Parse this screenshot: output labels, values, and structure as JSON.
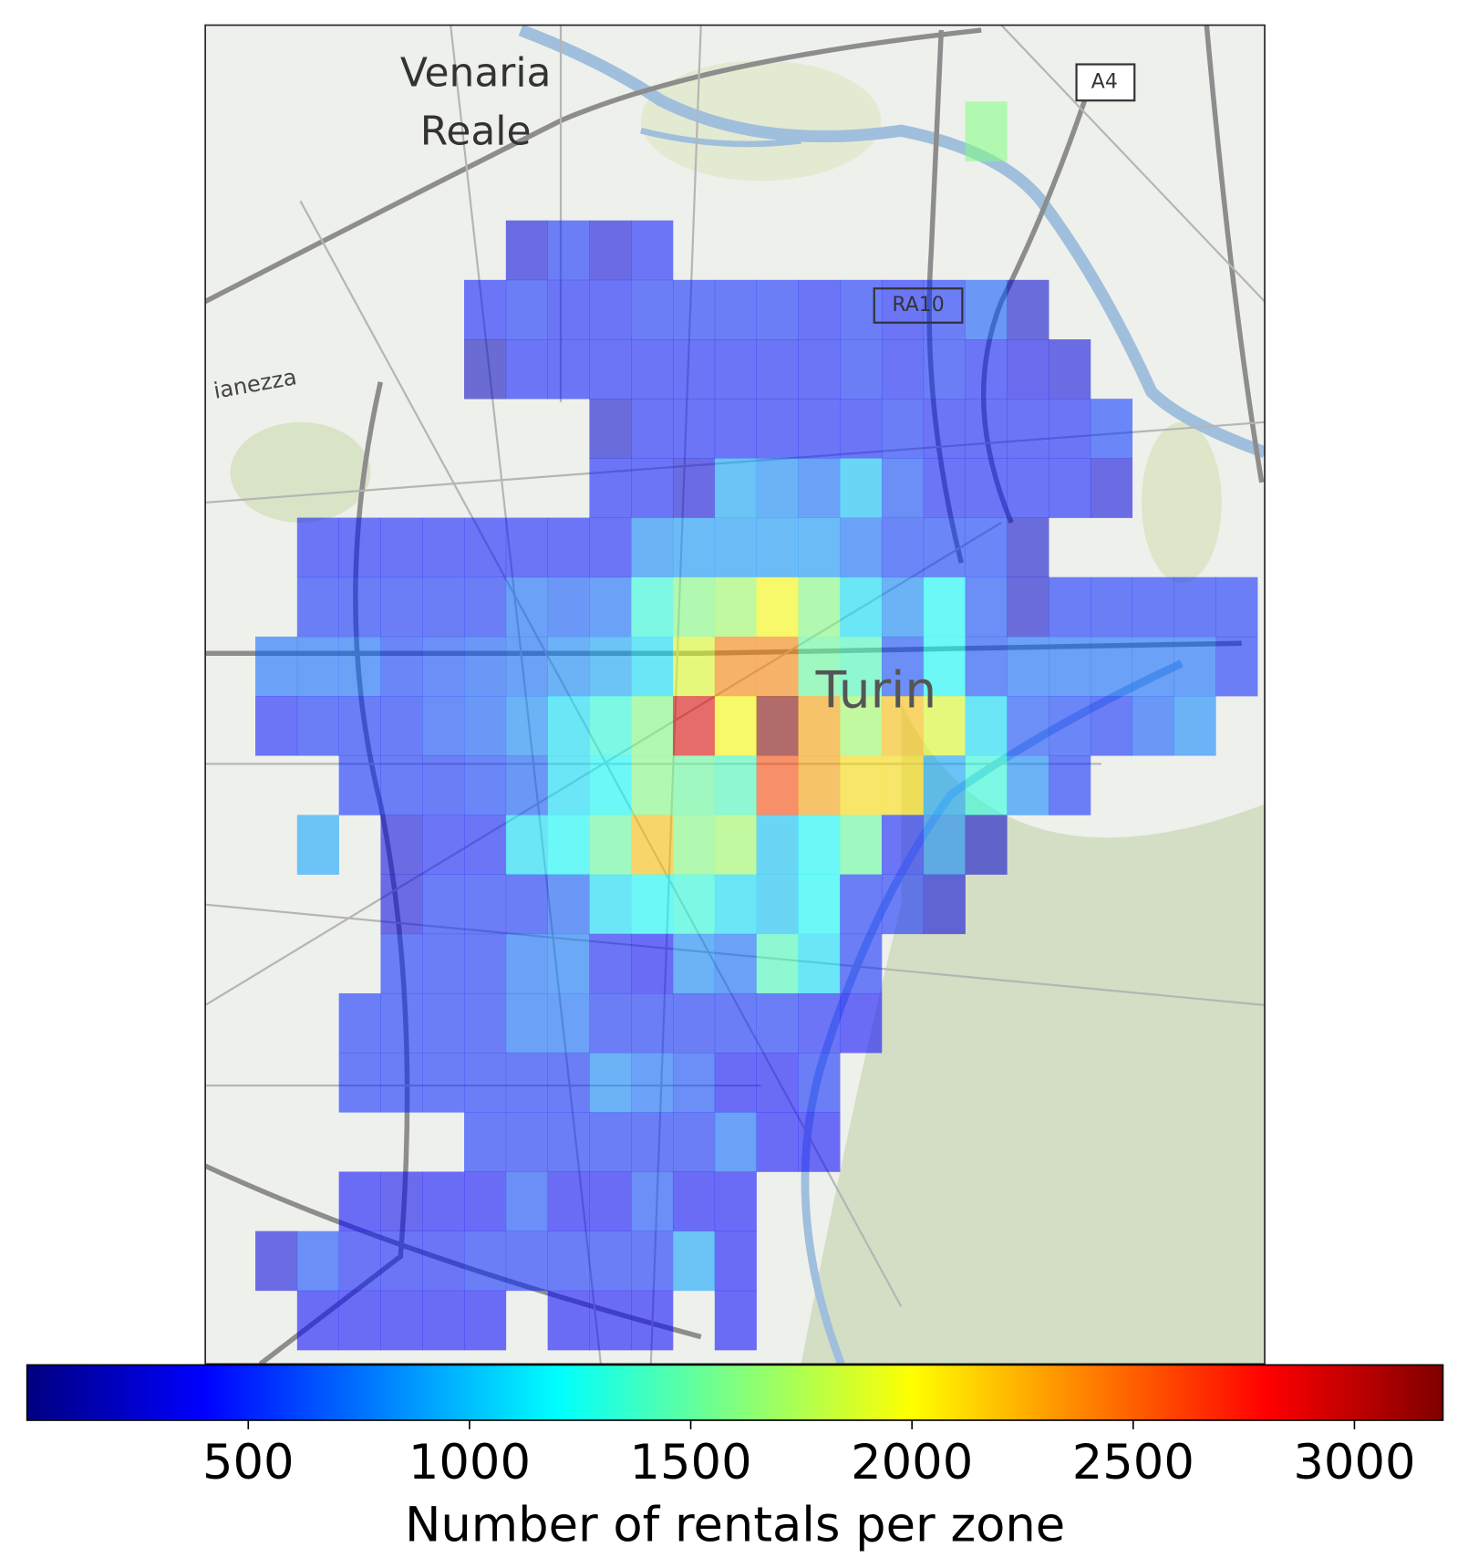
{
  "chart_data": {
    "type": "heatmap",
    "map_labels": [
      "Venaria",
      "Reale",
      "Turin",
      "RA10",
      "A4",
      "ianezza"
    ],
    "z": [
      [
        null,
        null,
        null,
        null,
        null,
        null,
        null,
        null,
        null,
        null,
        null,
        null,
        null,
        null,
        null,
        null,
        null,
        1600,
        null,
        null,
        null,
        null,
        null,
        null
      ],
      [
        null,
        null,
        null,
        null,
        null,
        null,
        null,
        null,
        null,
        null,
        null,
        null,
        null,
        null,
        null,
        null,
        null,
        null,
        null,
        null,
        null,
        null,
        null,
        null
      ],
      [
        null,
        null,
        null,
        null,
        null,
        null,
        300,
        500,
        300,
        450,
        null,
        null,
        null,
        null,
        null,
        null,
        null,
        null,
        null,
        null,
        null,
        null,
        null,
        null
      ],
      [
        null,
        null,
        null,
        null,
        null,
        450,
        500,
        450,
        450,
        500,
        500,
        500,
        500,
        450,
        500,
        450,
        500,
        650,
        250,
        null,
        null,
        null,
        null,
        null
      ],
      [
        null,
        null,
        null,
        null,
        null,
        200,
        450,
        450,
        450,
        450,
        450,
        450,
        450,
        450,
        500,
        450,
        500,
        450,
        350,
        300,
        null,
        null,
        null,
        null
      ],
      [
        null,
        null,
        null,
        null,
        null,
        null,
        null,
        null,
        250,
        450,
        450,
        450,
        450,
        450,
        450,
        500,
        450,
        450,
        450,
        450,
        550,
        null,
        null,
        null
      ],
      [
        null,
        null,
        null,
        null,
        null,
        null,
        null,
        null,
        450,
        450,
        300,
        900,
        800,
        700,
        1000,
        600,
        450,
        450,
        450,
        450,
        300,
        null,
        null,
        null
      ],
      [
        null,
        450,
        450,
        450,
        450,
        450,
        450,
        450,
        450,
        800,
        850,
        850,
        850,
        850,
        700,
        550,
        550,
        550,
        250,
        null,
        null,
        null,
        null,
        null
      ],
      [
        null,
        500,
        500,
        500,
        500,
        500,
        700,
        650,
        700,
        1300,
        1600,
        1700,
        2000,
        1600,
        1100,
        800,
        1200,
        600,
        250,
        500,
        500,
        500,
        500,
        500
      ],
      [
        700,
        700,
        700,
        550,
        600,
        650,
        700,
        800,
        900,
        1100,
        1900,
        2400,
        2400,
        1500,
        1400,
        600,
        1200,
        600,
        700,
        700,
        700,
        700,
        700,
        500
      ],
      [
        450,
        500,
        500,
        500,
        600,
        650,
        800,
        1100,
        1300,
        1600,
        2900,
        2000,
        3200,
        2300,
        1700,
        2200,
        1900,
        1100,
        600,
        550,
        500,
        650,
        800,
        null
      ],
      [
        null,
        null,
        500,
        500,
        500,
        550,
        650,
        1100,
        1200,
        1600,
        1500,
        1400,
        2600,
        2300,
        2100,
        2100,
        900,
        1300,
        800,
        500,
        null,
        null,
        null,
        null
      ],
      [
        null,
        900,
        null,
        300,
        450,
        450,
        1100,
        1200,
        1500,
        2200,
        1600,
        1700,
        1000,
        1200,
        1500,
        450,
        800,
        250,
        null,
        null,
        null,
        null,
        null,
        null
      ],
      [
        null,
        null,
        null,
        300,
        500,
        500,
        500,
        650,
        1100,
        1200,
        1300,
        1100,
        1000,
        1200,
        500,
        500,
        300,
        null,
        null,
        null,
        null,
        null,
        null,
        null
      ],
      [
        null,
        null,
        null,
        500,
        500,
        500,
        700,
        750,
        450,
        400,
        800,
        700,
        1400,
        1100,
        500,
        null,
        null,
        null,
        null,
        null,
        null,
        null,
        null,
        null
      ],
      [
        null,
        null,
        500,
        500,
        500,
        500,
        700,
        700,
        500,
        500,
        500,
        500,
        500,
        450,
        400,
        null,
        null,
        null,
        null,
        null,
        null,
        null,
        null,
        null
      ],
      [
        null,
        null,
        500,
        500,
        500,
        500,
        500,
        500,
        800,
        700,
        600,
        400,
        400,
        500,
        null,
        null,
        null,
        null,
        null,
        null,
        null,
        null,
        null,
        null
      ],
      [
        null,
        null,
        null,
        null,
        null,
        500,
        500,
        500,
        500,
        500,
        500,
        700,
        400,
        400,
        null,
        null,
        null,
        null,
        null,
        null,
        null,
        null,
        null,
        null
      ],
      [
        null,
        null,
        400,
        350,
        400,
        400,
        600,
        400,
        400,
        600,
        400,
        400,
        null,
        null,
        null,
        null,
        null,
        null,
        null,
        null,
        null,
        null,
        null,
        null
      ],
      [
        300,
        600,
        450,
        450,
        450,
        500,
        500,
        500,
        500,
        500,
        900,
        400,
        null,
        null,
        null,
        null,
        null,
        null,
        null,
        null,
        null,
        null,
        null,
        null
      ],
      [
        null,
        400,
        400,
        400,
        400,
        400,
        null,
        400,
        400,
        400,
        null,
        400,
        null,
        null,
        null,
        null,
        null,
        null,
        null,
        null,
        null,
        null,
        null,
        null
      ]
    ],
    "colormap": "jet",
    "alpha": 0.55,
    "clim": [
      0,
      3200
    ],
    "cticks": [
      500,
      1000,
      1500,
      2000,
      2500,
      3000
    ],
    "colorbar_label": "Number of rentals per zone"
  }
}
